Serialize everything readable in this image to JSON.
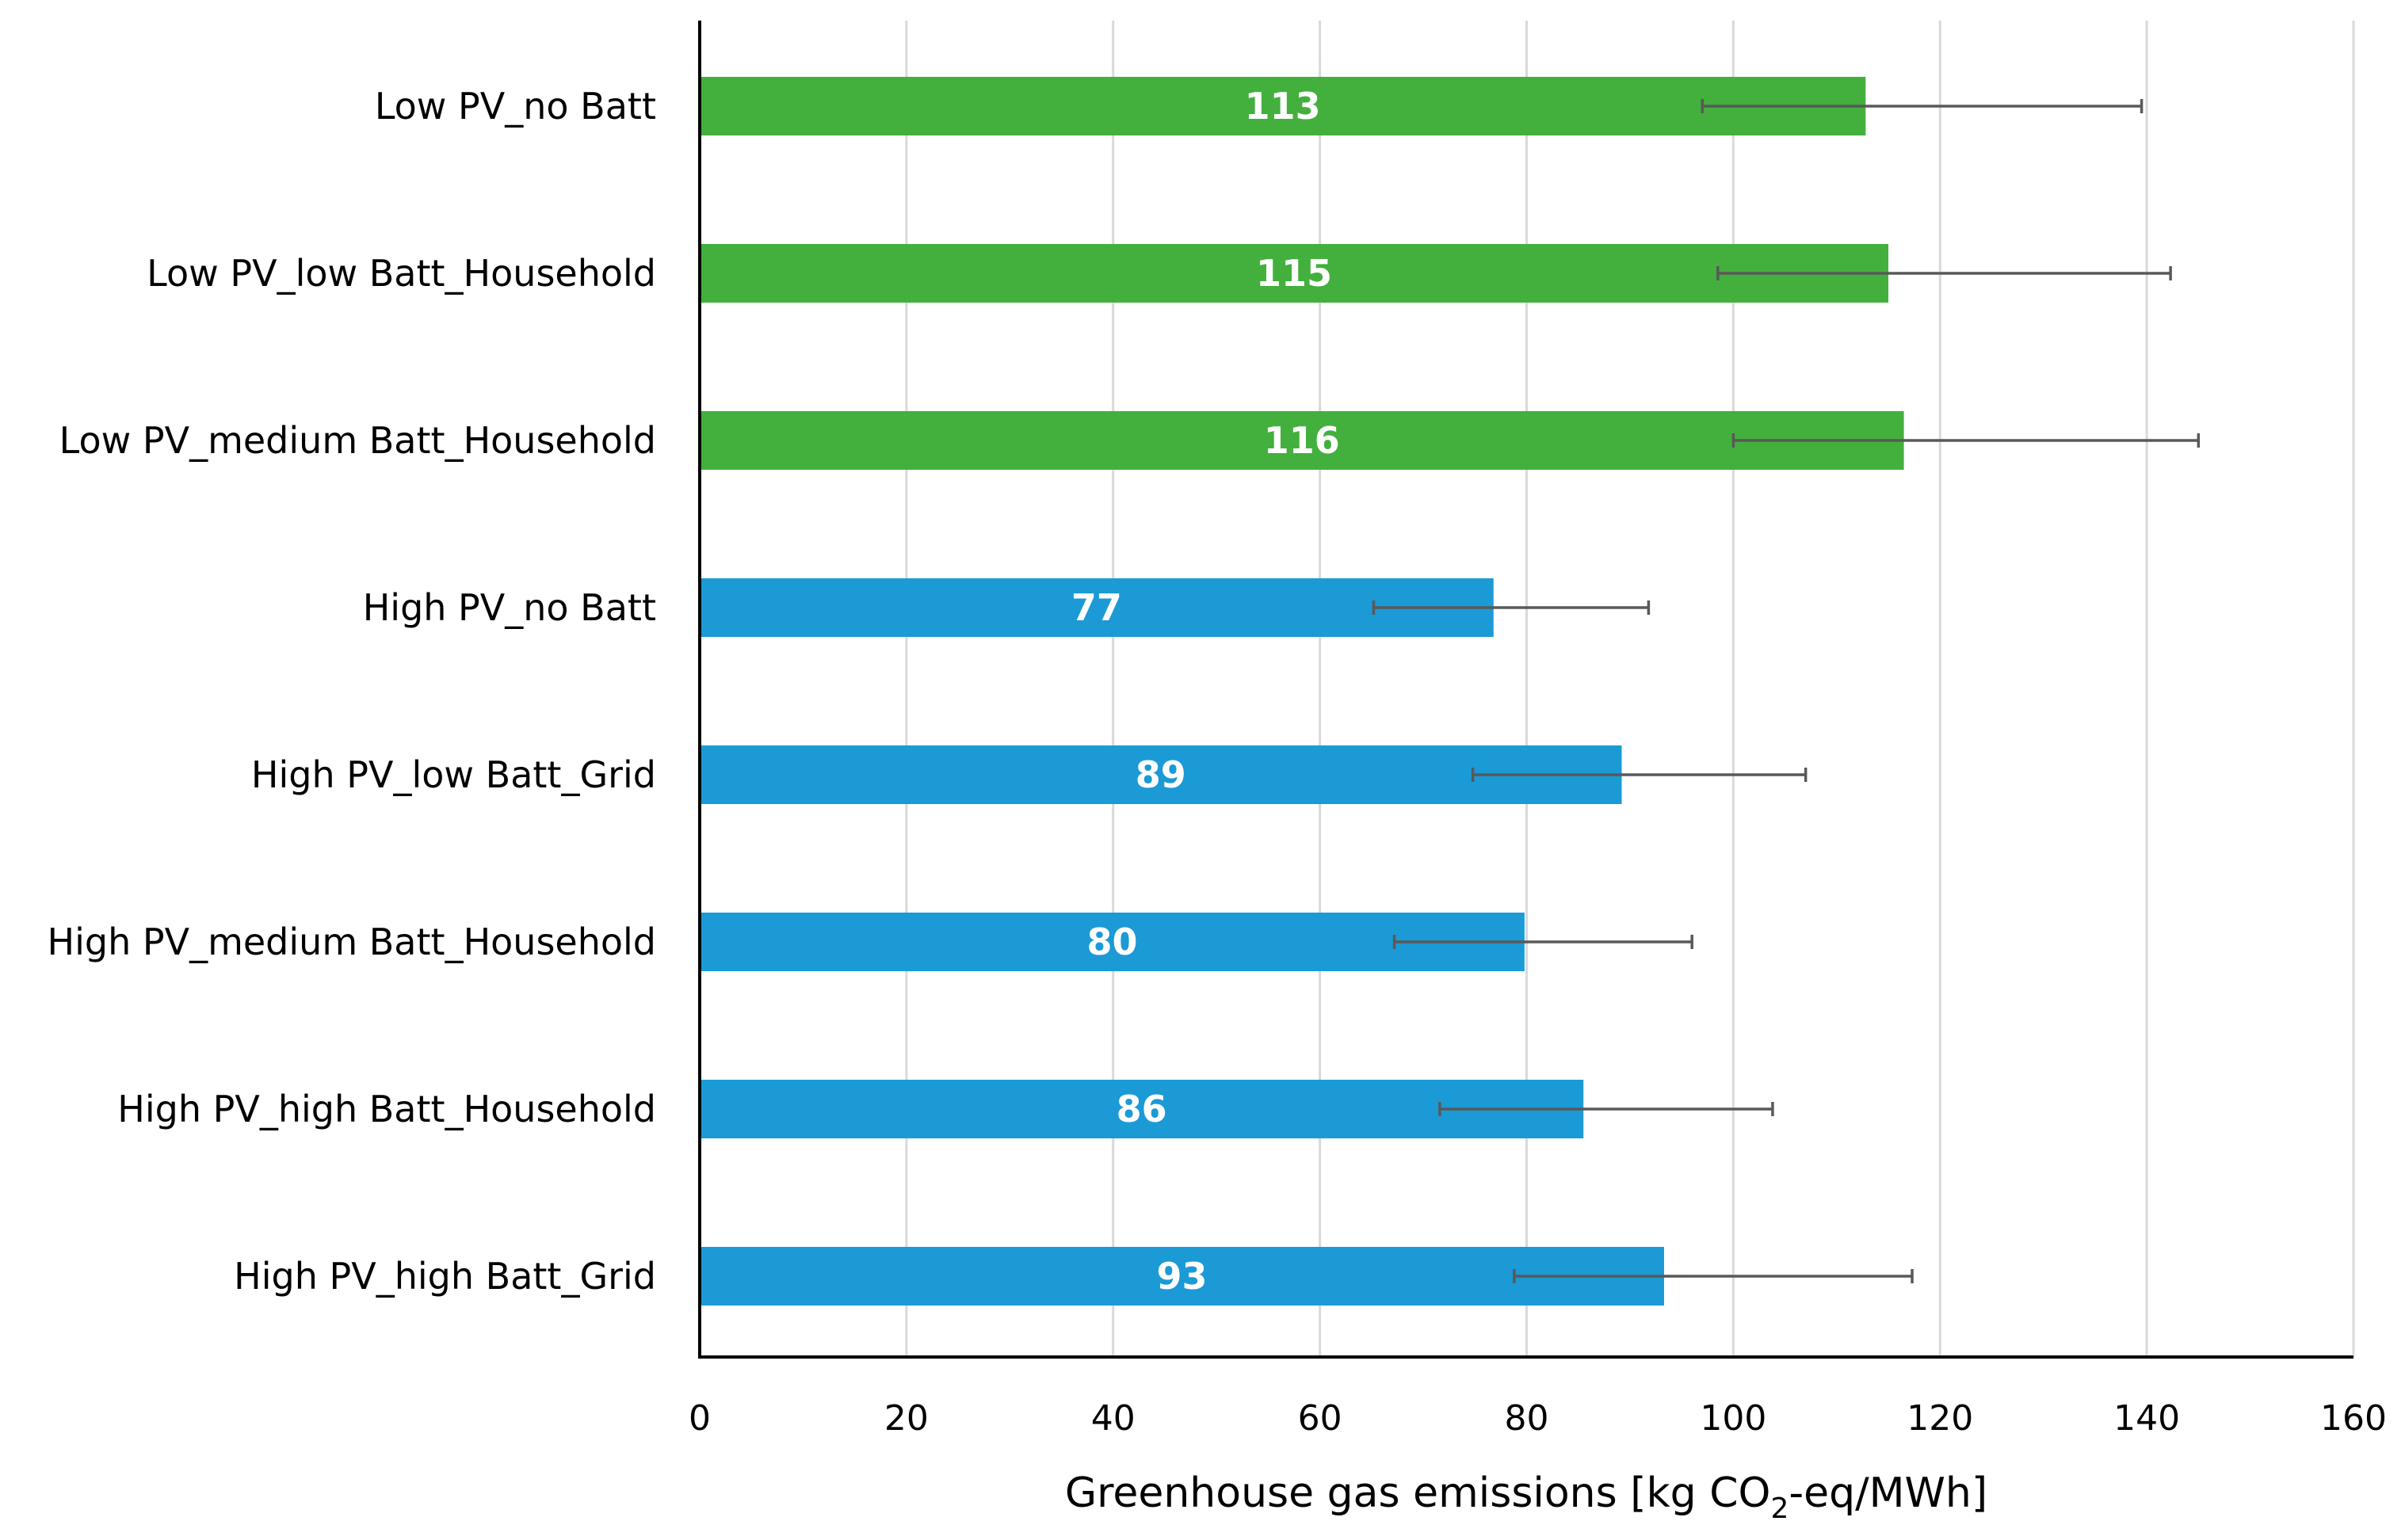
{
  "chart_data": {
    "type": "bar",
    "orientation": "horizontal",
    "categories": [
      "Low PV_no Batt",
      "Low PV_low Batt_Household",
      "Low PV_medium Batt_Household",
      "High PV_no Batt",
      "High PV_low Batt_Grid",
      "High PV_medium Batt_Household",
      "High PV_high Batt_Household",
      "High PV_high Batt_Grid"
    ],
    "values": [
      112.8,
      115,
      116.5,
      76.8,
      89.2,
      79.8,
      85.5,
      93.3
    ],
    "value_labels": [
      "113",
      "115",
      "116",
      "77",
      "89",
      "80",
      "86",
      "93"
    ],
    "error_low": [
      97,
      98.5,
      100,
      65.2,
      74.8,
      67.2,
      71.6,
      78.8
    ],
    "error_high": [
      139.5,
      142.3,
      145,
      91.8,
      107,
      96,
      103.8,
      117.3
    ],
    "bar_colors": [
      "#43b03d",
      "#43b03d",
      "#43b03d",
      "#1b9ad6",
      "#1b9ad6",
      "#1b9ad6",
      "#1b9ad6",
      "#1b9ad6"
    ],
    "error_bar_color": "#595959",
    "gridline_color": "#d9d9d9",
    "xlim": [
      0,
      160
    ],
    "xticks": [
      0,
      20,
      40,
      60,
      80,
      100,
      120,
      140,
      160
    ],
    "xtick_labels": [
      "0",
      "20",
      "40",
      "60",
      "80",
      "100",
      "120",
      "140",
      "160"
    ],
    "grid": true,
    "xlabel": {
      "prefix": "Greenhouse gas emissions [kg CO",
      "subscript": "2",
      "suffix": "-eq/MWh]"
    },
    "title": ""
  }
}
